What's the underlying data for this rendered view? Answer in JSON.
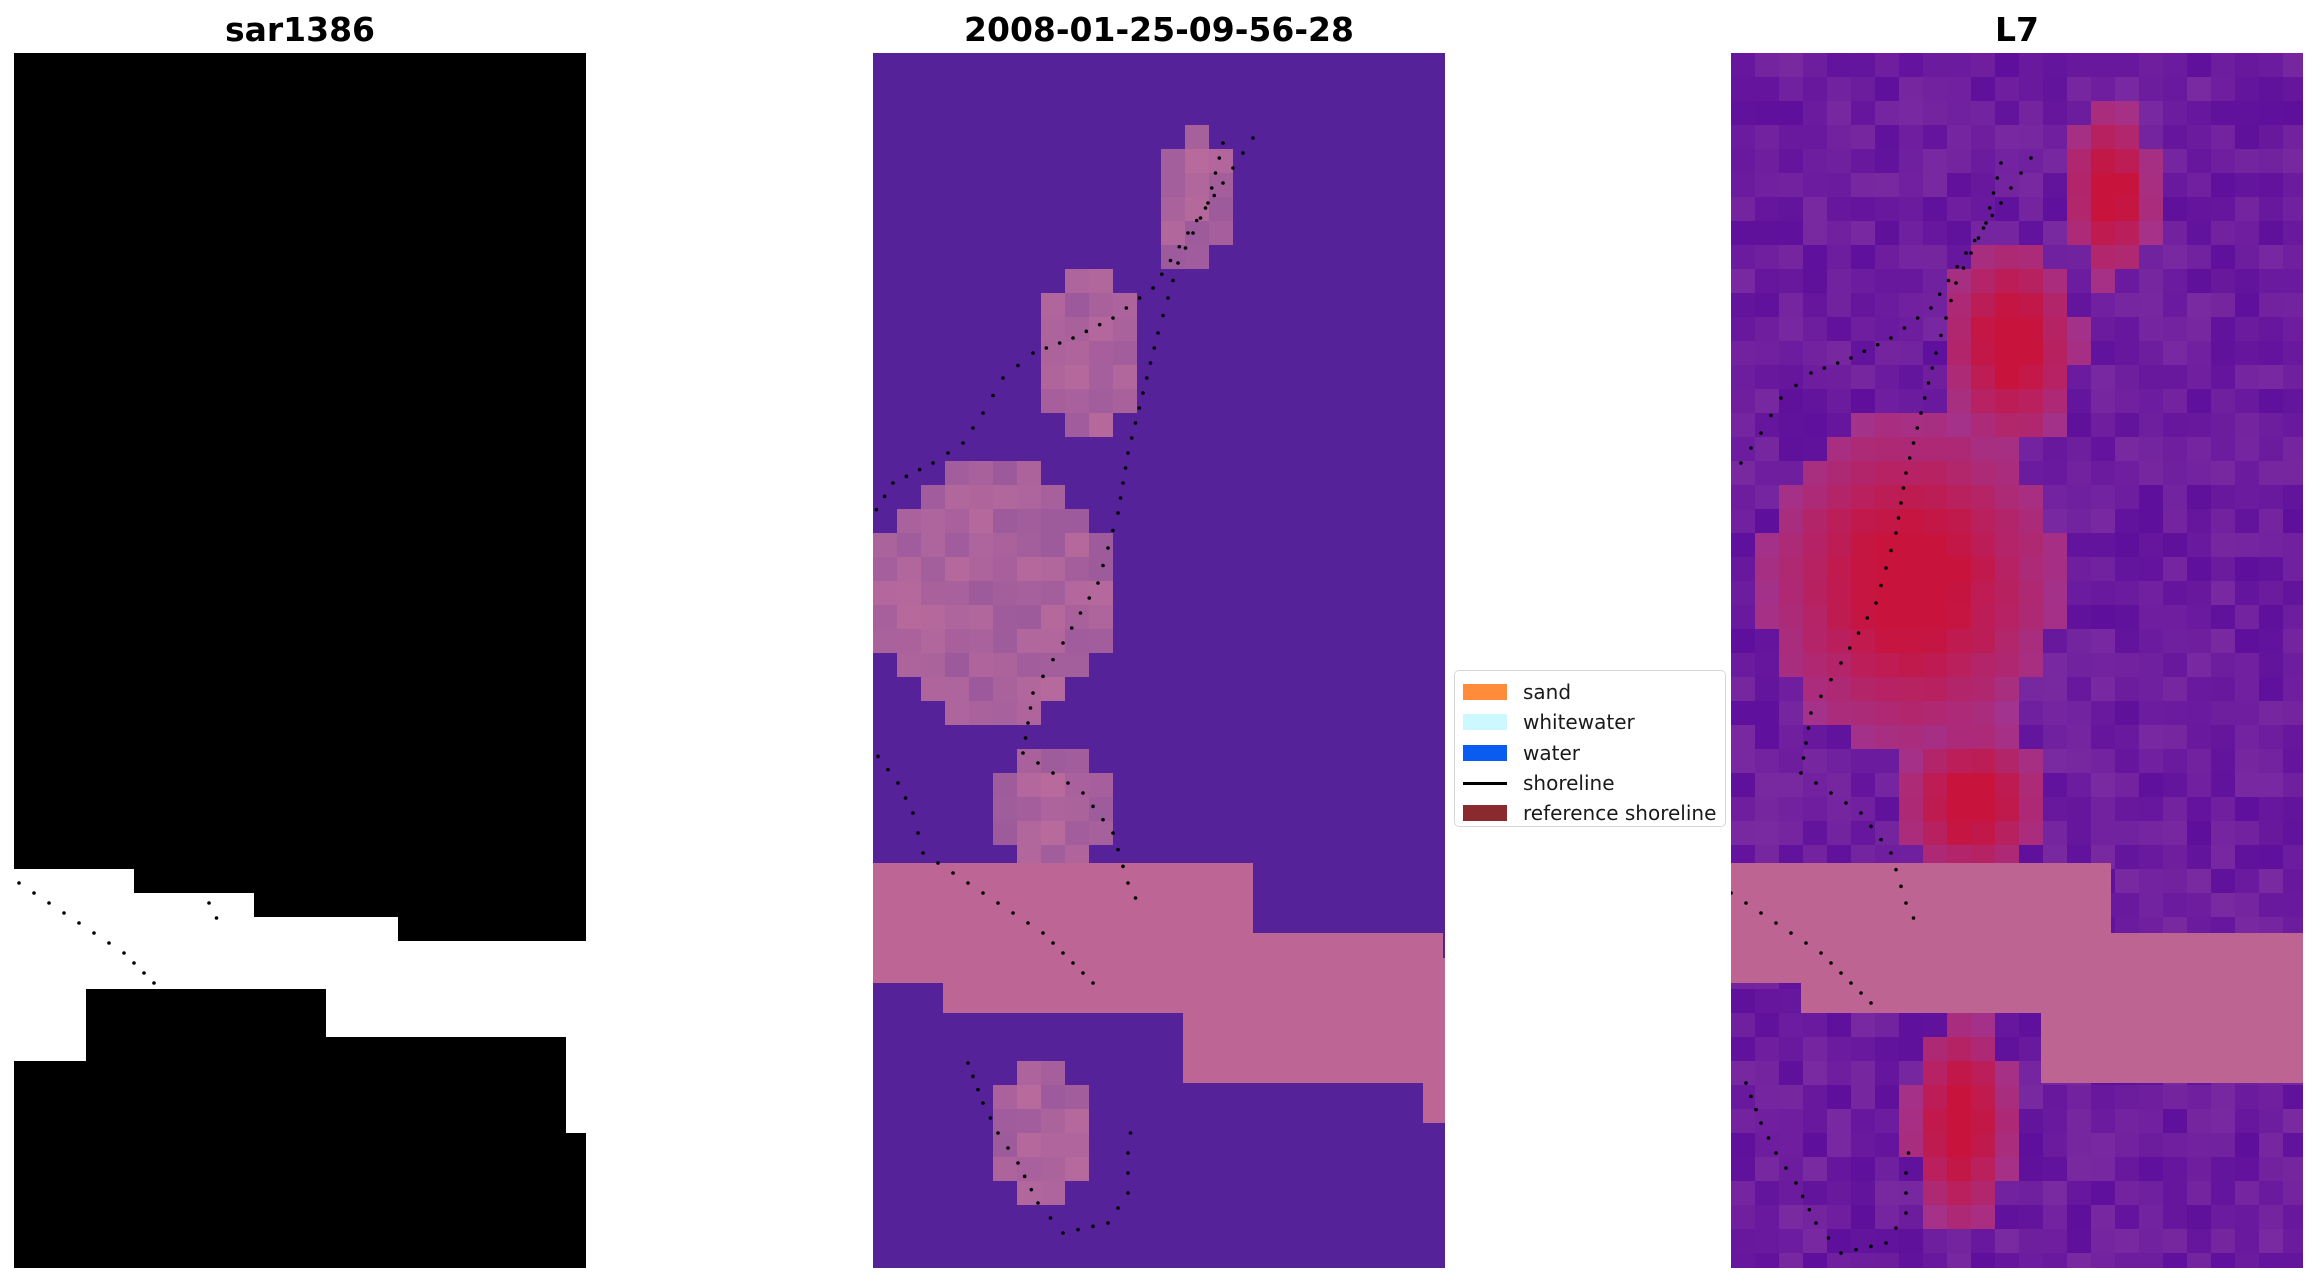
{
  "panels": [
    {
      "title": "sar1386",
      "kind": "rgb-composite"
    },
    {
      "title": "2008-01-25-09-56-28",
      "kind": "classification"
    },
    {
      "title": "L7",
      "kind": "index"
    }
  ],
  "legend": {
    "items": [
      {
        "label": "sand",
        "color": "#ff8c3a",
        "kind": "patch"
      },
      {
        "label": "whitewater",
        "color": "#ccf8ff",
        "kind": "patch"
      },
      {
        "label": "water",
        "color": "#0a5cf0",
        "kind": "patch"
      },
      {
        "label": "shoreline",
        "color": "#000000",
        "kind": "line"
      },
      {
        "label": "reference shoreline",
        "color": "#8b2a2e",
        "kind": "patch"
      }
    ]
  },
  "colors": {
    "rgb_water": "#7a9fd6",
    "rgb_bright": "#f2f6ff",
    "class_background": "#55229a",
    "class_land": "#bd6696",
    "index_low": "#6a159e",
    "index_high": "#c8133c",
    "index_band": "#be6492",
    "shoreline_dots": "#000000"
  }
}
